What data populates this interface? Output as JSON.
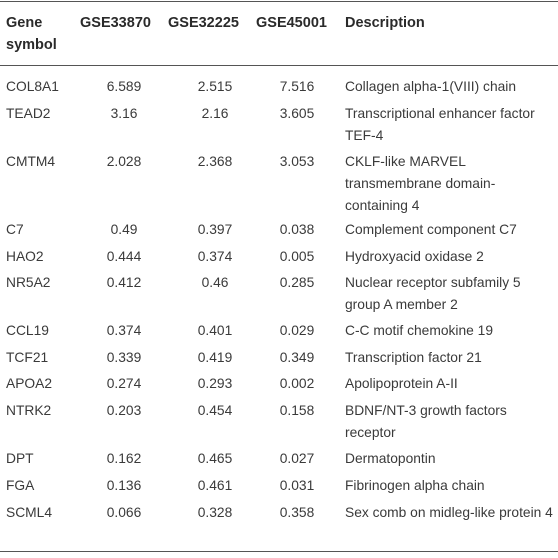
{
  "table": {
    "headers": {
      "gene_symbol": "Gene symbol",
      "gse33870": "GSE33870",
      "gse32225": "GSE32225",
      "gse45001": "GSE45001",
      "description": "Description"
    },
    "rows": [
      {
        "gene": "COL8A1",
        "gse33870": "6.589",
        "gse32225": "2.515",
        "gse45001": "7.516",
        "description": "Collagen alpha-1(VIII) chain"
      },
      {
        "gene": "TEAD2",
        "gse33870": "3.16",
        "gse32225": "2.16",
        "gse45001": "3.605",
        "description": "Transcriptional enhancer factor TEF-4"
      },
      {
        "gene": "CMTM4",
        "gse33870": "2.028",
        "gse32225": "2.368",
        "gse45001": "3.053",
        "description": "CKLF-like MARVEL transmembrane domain-containing 4"
      },
      {
        "gene": "C7",
        "gse33870": "0.49",
        "gse32225": "0.397",
        "gse45001": "0.038",
        "description": "Complement component C7"
      },
      {
        "gene": "HAO2",
        "gse33870": "0.444",
        "gse32225": "0.374",
        "gse45001": "0.005",
        "description": "Hydroxyacid oxidase 2"
      },
      {
        "gene": "NR5A2",
        "gse33870": "0.412",
        "gse32225": "0.46",
        "gse45001": "0.285",
        "description": "Nuclear receptor subfamily 5 group A member 2"
      },
      {
        "gene": "CCL19",
        "gse33870": "0.374",
        "gse32225": "0.401",
        "gse45001": "0.029",
        "description": "C-C motif chemokine 19"
      },
      {
        "gene": "TCF21",
        "gse33870": "0.339",
        "gse32225": "0.419",
        "gse45001": "0.349",
        "description": "Transcription factor 21"
      },
      {
        "gene": "APOA2",
        "gse33870": "0.274",
        "gse32225": "0.293",
        "gse45001": "0.002",
        "description": "Apolipoprotein A-II"
      },
      {
        "gene": "NTRK2",
        "gse33870": "0.203",
        "gse32225": "0.454",
        "gse45001": "0.158",
        "description": "BDNF/NT-3 growth factors receptor"
      },
      {
        "gene": "DPT",
        "gse33870": "0.162",
        "gse32225": "0.465",
        "gse45001": "0.027",
        "description": "Dermatopontin"
      },
      {
        "gene": "FGA",
        "gse33870": "0.136",
        "gse32225": "0.461",
        "gse45001": "0.031",
        "description": "Fibrinogen alpha chain"
      },
      {
        "gene": "SCML4",
        "gse33870": "0.066",
        "gse32225": "0.328",
        "gse45001": "0.358",
        "description": "Sex comb on midleg-like protein 4"
      }
    ]
  }
}
